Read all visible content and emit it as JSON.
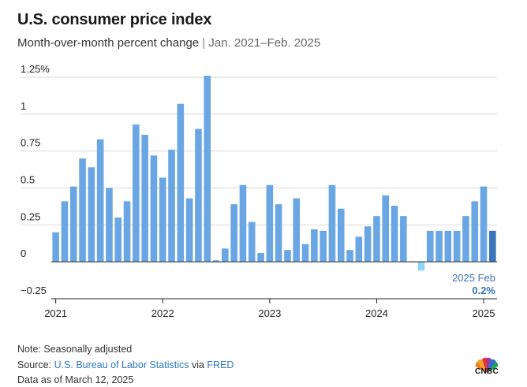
{
  "header": {
    "title": "U.S. consumer price index",
    "subtitle_main": "Month-over-month percent change",
    "subtitle_sep": " | ",
    "subtitle_range": "Jan. 2021–Feb. 2025"
  },
  "footer": {
    "note": "Note: Seasonally adjusted",
    "source_prefix": "Source: ",
    "source_link1": "U.S. Bureau of Labor Statistics",
    "source_mid": " via ",
    "source_link2": "FRED",
    "data_as_of": "Data as of March 12, 2025",
    "logo_text": "CNBC"
  },
  "colors": {
    "bar": "#69a6e3",
    "bar_negative": "#8fd6f5",
    "bar_latest": "#3a73b8",
    "grid": "#d9d9d9",
    "axis": "#222222",
    "annotation": "#3a73b8"
  },
  "chart_data": {
    "type": "bar",
    "title": "U.S. consumer price index",
    "subtitle": "Month-over-month percent change | Jan. 2021–Feb. 2025",
    "xlabel": "",
    "ylabel": "",
    "ylim": [
      -0.25,
      1.25
    ],
    "y_ticks": [
      {
        "value": 1.25,
        "label": "1.25%"
      },
      {
        "value": 1,
        "label": "1"
      },
      {
        "value": 0.75,
        "label": "0.75"
      },
      {
        "value": 0.5,
        "label": "0.5"
      },
      {
        "value": 0.25,
        "label": "0.25"
      },
      {
        "value": 0,
        "label": "0"
      },
      {
        "value": -0.25,
        "label": "−0.25"
      }
    ],
    "x_ticks": [
      {
        "index": 0,
        "label": "2021"
      },
      {
        "index": 12,
        "label": "2022"
      },
      {
        "index": 24,
        "label": "2023"
      },
      {
        "index": 36,
        "label": "2024"
      },
      {
        "index": 48,
        "label": "2025"
      }
    ],
    "categories": [
      "Jan 2021",
      "Feb 2021",
      "Mar 2021",
      "Apr 2021",
      "May 2021",
      "Jun 2021",
      "Jul 2021",
      "Aug 2021",
      "Sep 2021",
      "Oct 2021",
      "Nov 2021",
      "Dec 2021",
      "Jan 2022",
      "Feb 2022",
      "Mar 2022",
      "Apr 2022",
      "May 2022",
      "Jun 2022",
      "Jul 2022",
      "Aug 2022",
      "Sep 2022",
      "Oct 2022",
      "Nov 2022",
      "Dec 2022",
      "Jan 2023",
      "Feb 2023",
      "Mar 2023",
      "Apr 2023",
      "May 2023",
      "Jun 2023",
      "Jul 2023",
      "Aug 2023",
      "Sep 2023",
      "Oct 2023",
      "Nov 2023",
      "Dec 2023",
      "Jan 2024",
      "Feb 2024",
      "Mar 2024",
      "Apr 2024",
      "May 2024",
      "Jun 2024",
      "Jul 2024",
      "Aug 2024",
      "Sep 2024",
      "Oct 2024",
      "Nov 2024",
      "Dec 2024",
      "Jan 2025",
      "Feb 2025"
    ],
    "values": [
      0.2,
      0.41,
      0.51,
      0.7,
      0.64,
      0.83,
      0.5,
      0.3,
      0.41,
      0.93,
      0.86,
      0.72,
      0.57,
      0.76,
      1.07,
      0.43,
      0.9,
      1.26,
      0.01,
      0.09,
      0.39,
      0.52,
      0.27,
      0.06,
      0.52,
      0.39,
      0.08,
      0.43,
      0.12,
      0.22,
      0.21,
      0.52,
      0.36,
      0.08,
      0.17,
      0.24,
      0.31,
      0.45,
      0.38,
      0.31,
      0.0,
      -0.06,
      0.21,
      0.21,
      0.21,
      0.21,
      0.31,
      0.41,
      0.51,
      0.21
    ],
    "annotation": {
      "label": "2025 Feb",
      "value_label": "0.2%",
      "index": 49
    }
  }
}
